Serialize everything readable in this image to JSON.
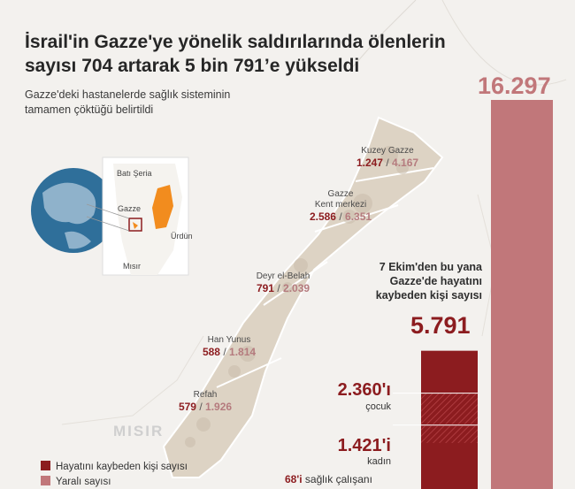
{
  "header": {
    "title_line1": "İsrail'in Gazze'ye yönelik saldırılarında ölenlerin",
    "title_line2": "sayısı 704 artarak 5 bin 791’e yükseldi",
    "subtitle_line1": "Gazze'deki hastanelerde sağlık sisteminin",
    "subtitle_line2": "tamamen çöktüğü belirtildi"
  },
  "inset_map": {
    "labels": {
      "west_bank": "Batı Şeria",
      "gaza": "Gazze",
      "jordan": "Ürdün",
      "egypt": "Mısır"
    }
  },
  "map": {
    "egypt_label": "MISIR",
    "cities": [
      {
        "name": "Kuzey Gazze",
        "killed": "1.247",
        "wounded": "4.167"
      },
      {
        "name_line1": "Gazze",
        "name_line2": "Kent merkezi",
        "killed": "2.586",
        "wounded": "6.351"
      },
      {
        "name": "Deyr el-Belah",
        "killed": "791",
        "wounded": "2.039"
      },
      {
        "name": "Han Yunus",
        "killed": "588",
        "wounded": "1.814"
      },
      {
        "name": "Refah",
        "killed": "579",
        "wounded": "1.926"
      }
    ],
    "separator": "/"
  },
  "totals": {
    "since_line1": "7 Ekim'den bu yana",
    "since_line2": "Gazze'de hayatını",
    "since_line3": "kaybeden kişi sayısı",
    "wounded_total": "16.297",
    "killed_total": "5.791",
    "children": "2.360'ı",
    "children_label": "çocuk",
    "women": "1.421'i",
    "women_label": "kadın",
    "health_count": "68'i",
    "health_label": "sağlık çalışanı"
  },
  "legend": {
    "killed_label": "Hayatını kaybeden kişi sayısı",
    "wounded_label": "Yaralı sayısı"
  },
  "colors": {
    "killed": "#8c1c1f",
    "wounded": "#c1777a",
    "land": "#ddd3c4",
    "highlight": "#f28c1e"
  },
  "chart_data": {
    "type": "bar",
    "categories": [
      "Yaralı sayısı",
      "Hayatını kaybeden kişi sayısı"
    ],
    "values": [
      16297,
      5791
    ],
    "breakdown_of_killed": {
      "çocuk": 2360,
      "kadın": 1421,
      "sağlık çalışanı": 68
    }
  }
}
